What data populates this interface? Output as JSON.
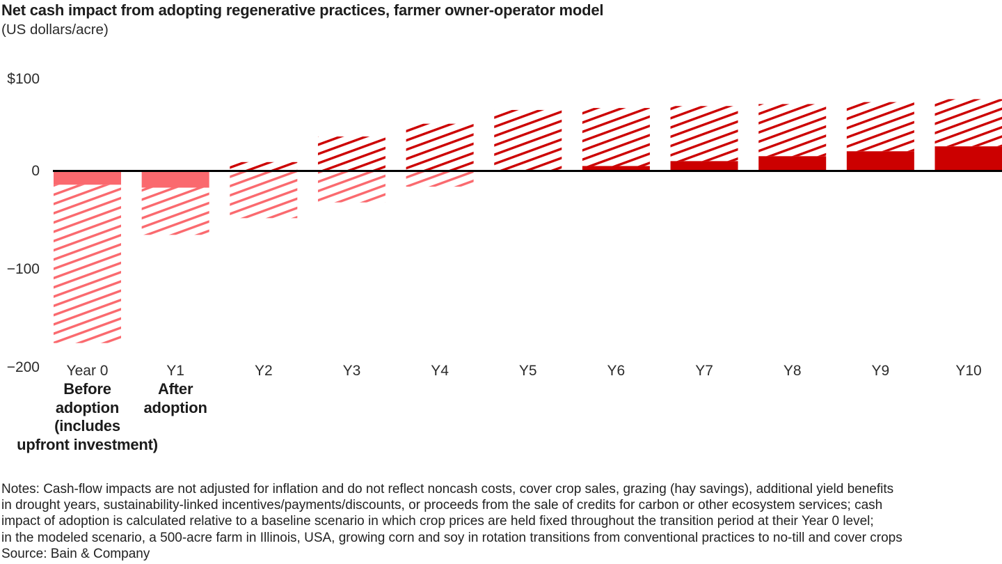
{
  "chart": {
    "title": "Net cash impact from adopting regenerative practices, farmer owner-operator model",
    "subtitle": "(US dollars/acre)"
  },
  "colors": {
    "solid_negative": "#fa696e",
    "solid_positive": "#cc0000",
    "hatch_negative": "#fa696e",
    "hatch_positive": "#cc0000",
    "baseline": "#000000"
  },
  "chart_data": {
    "type": "bar",
    "title": "Net cash impact from adopting regenerative practices, farmer owner-operator model",
    "ylabel": "US dollars/acre",
    "ylim": [
      -200,
      100
    ],
    "grid": false,
    "legend": "none",
    "yticks": [
      {
        "label": "$100",
        "value": 100
      },
      {
        "label": "0",
        "value": 0
      },
      {
        "label": "−100",
        "value": -100
      },
      {
        "label": "−200",
        "value": -200
      }
    ],
    "bars": [
      {
        "label": "Year 0",
        "solid": -14,
        "range": [
          -175,
          -14
        ]
      },
      {
        "label": "Y1",
        "solid": -17,
        "range": [
          -65,
          -17
        ]
      },
      {
        "label": "Y2",
        "solid": null,
        "range": [
          -48,
          9
        ]
      },
      {
        "label": "Y3",
        "solid": null,
        "range": [
          -32,
          35
        ]
      },
      {
        "label": "Y4",
        "solid": null,
        "range": [
          -16,
          48
        ]
      },
      {
        "label": "Y5",
        "solid": null,
        "range": [
          0,
          62
        ]
      },
      {
        "label": "Y6",
        "solid": 5,
        "range": [
          5,
          64
        ]
      },
      {
        "label": "Y7",
        "solid": 10,
        "range": [
          10,
          66
        ]
      },
      {
        "label": "Y8",
        "solid": 15,
        "range": [
          15,
          68
        ]
      },
      {
        "label": "Y9",
        "solid": 20,
        "range": [
          20,
          70
        ]
      },
      {
        "label": "Y10",
        "solid": 25,
        "range": [
          25,
          73
        ]
      }
    ],
    "annotations": [
      {
        "bar_index": 0,
        "lines": [
          "Before",
          "adoption",
          "(includes",
          "upfront investment)"
        ]
      },
      {
        "bar_index": 1,
        "lines": [
          "After",
          "adoption"
        ]
      }
    ]
  },
  "notes": {
    "lines": [
      "Notes: Cash-flow impacts are not adjusted for inflation and do not reflect noncash costs, cover crop sales, grazing (hay savings), additional yield benefits",
      "in drought years, sustainability-linked incentives/payments/discounts, or proceeds from the sale of credits for carbon or other ecosystem services; cash",
      "impact of adoption is calculated relative to a baseline scenario in which crop prices are held fixed throughout the transition period at their Year 0 level;",
      "in the modeled scenario, a 500-acre farm in Illinois, USA, growing corn and soy in rotation transitions from conventional practices to no-till and cover crops"
    ],
    "source": "Source: Bain & Company"
  }
}
